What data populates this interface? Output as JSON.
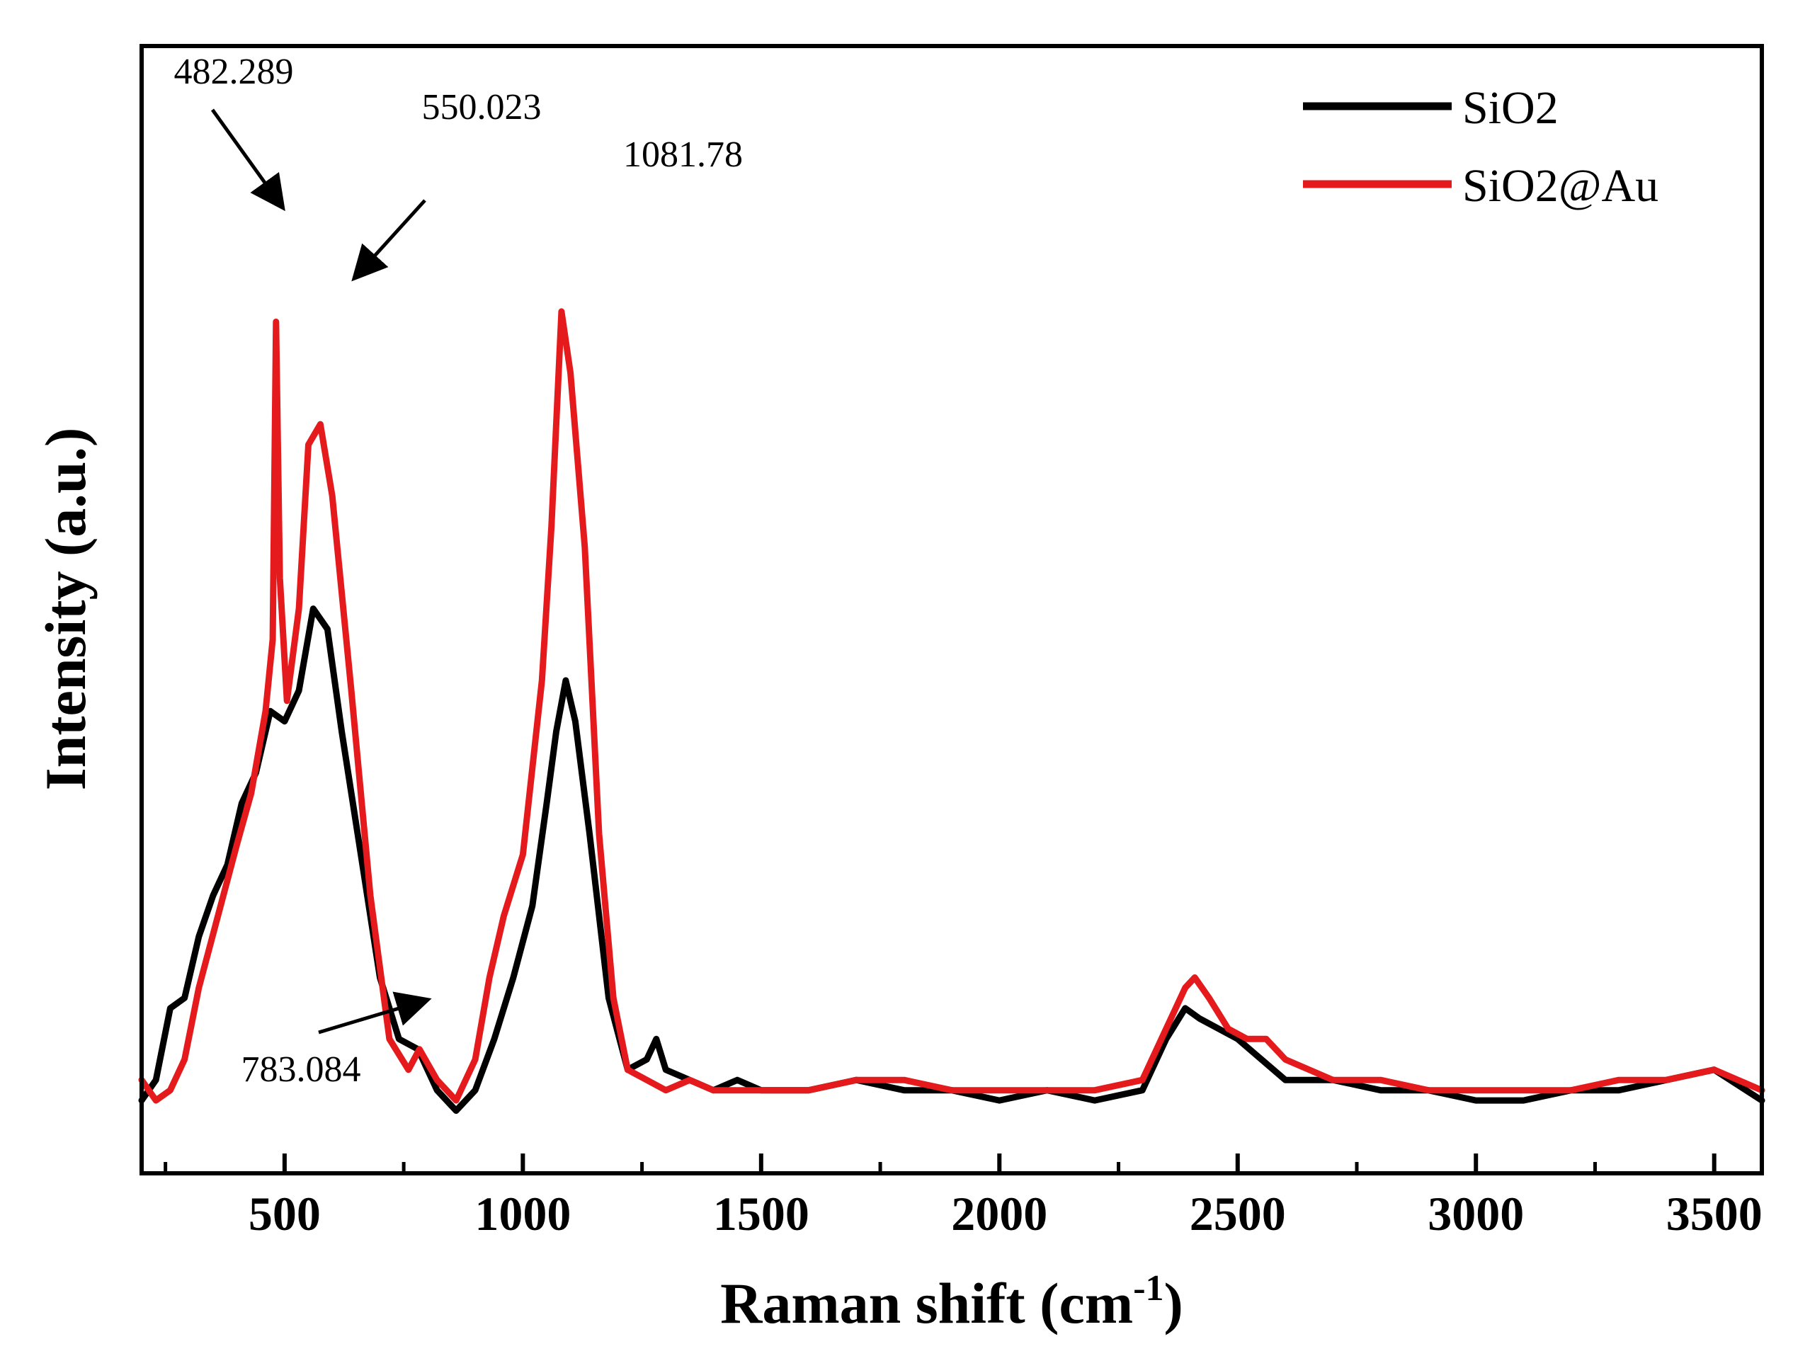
{
  "chart_data": {
    "type": "line",
    "xlabel": "Raman shift (cm",
    "xlabel_sup": "-1",
    "xlabel_close": ")",
    "ylabel": "Intensity (a.u.)",
    "xlim": [
      200,
      3600
    ],
    "ylim": [
      0,
      100
    ],
    "x_ticks": [
      500,
      1000,
      1500,
      2000,
      2500,
      3000,
      3500
    ],
    "x_minor_ticks": [
      250,
      750,
      1250,
      1750,
      2250,
      2750,
      3250
    ],
    "y_ticks_labeled": false,
    "legend": {
      "position": "top-right"
    },
    "series": [
      {
        "name": "SiO2",
        "color": "#000000",
        "points": [
          [
            200,
            4
          ],
          [
            230,
            6
          ],
          [
            260,
            13
          ],
          [
            290,
            14
          ],
          [
            320,
            20
          ],
          [
            350,
            24
          ],
          [
            380,
            27
          ],
          [
            410,
            33
          ],
          [
            440,
            36
          ],
          [
            470,
            42
          ],
          [
            500,
            41
          ],
          [
            530,
            44
          ],
          [
            560,
            52
          ],
          [
            590,
            50
          ],
          [
            620,
            40
          ],
          [
            660,
            28
          ],
          [
            700,
            16
          ],
          [
            740,
            10
          ],
          [
            780,
            9
          ],
          [
            820,
            5
          ],
          [
            860,
            3
          ],
          [
            900,
            5
          ],
          [
            940,
            10
          ],
          [
            980,
            16
          ],
          [
            1020,
            23
          ],
          [
            1050,
            33
          ],
          [
            1070,
            40
          ],
          [
            1090,
            45
          ],
          [
            1110,
            41
          ],
          [
            1140,
            30
          ],
          [
            1180,
            14
          ],
          [
            1220,
            7
          ],
          [
            1260,
            8
          ],
          [
            1280,
            10
          ],
          [
            1300,
            7
          ],
          [
            1350,
            6
          ],
          [
            1400,
            5
          ],
          [
            1450,
            6
          ],
          [
            1500,
            5
          ],
          [
            1600,
            5
          ],
          [
            1700,
            6
          ],
          [
            1800,
            5
          ],
          [
            1900,
            5
          ],
          [
            2000,
            4
          ],
          [
            2100,
            5
          ],
          [
            2200,
            4
          ],
          [
            2300,
            5
          ],
          [
            2350,
            10
          ],
          [
            2390,
            13
          ],
          [
            2420,
            12
          ],
          [
            2460,
            11
          ],
          [
            2500,
            10
          ],
          [
            2550,
            8
          ],
          [
            2600,
            6
          ],
          [
            2700,
            6
          ],
          [
            2800,
            5
          ],
          [
            2900,
            5
          ],
          [
            3000,
            4
          ],
          [
            3100,
            4
          ],
          [
            3200,
            5
          ],
          [
            3300,
            5
          ],
          [
            3400,
            6
          ],
          [
            3500,
            7
          ],
          [
            3600,
            4
          ]
        ]
      },
      {
        "name": "SiO2@Au",
        "color": "#e41a1c",
        "points": [
          [
            200,
            6
          ],
          [
            230,
            4
          ],
          [
            260,
            5
          ],
          [
            290,
            8
          ],
          [
            320,
            15
          ],
          [
            360,
            22
          ],
          [
            400,
            29
          ],
          [
            430,
            34
          ],
          [
            460,
            42
          ],
          [
            475,
            49
          ],
          [
            482,
            80
          ],
          [
            490,
            55
          ],
          [
            505,
            43
          ],
          [
            530,
            52
          ],
          [
            550,
            68
          ],
          [
            575,
            70
          ],
          [
            600,
            63
          ],
          [
            640,
            44
          ],
          [
            680,
            24
          ],
          [
            720,
            10
          ],
          [
            760,
            7
          ],
          [
            783,
            9
          ],
          [
            820,
            6
          ],
          [
            860,
            4
          ],
          [
            900,
            8
          ],
          [
            930,
            16
          ],
          [
            960,
            22
          ],
          [
            1000,
            28
          ],
          [
            1040,
            45
          ],
          [
            1060,
            60
          ],
          [
            1081,
            81
          ],
          [
            1100,
            75
          ],
          [
            1130,
            58
          ],
          [
            1160,
            30
          ],
          [
            1190,
            14
          ],
          [
            1220,
            7
          ],
          [
            1260,
            6
          ],
          [
            1300,
            5
          ],
          [
            1350,
            6
          ],
          [
            1400,
            5
          ],
          [
            1500,
            5
          ],
          [
            1600,
            5
          ],
          [
            1700,
            6
          ],
          [
            1800,
            6
          ],
          [
            1900,
            5
          ],
          [
            2000,
            5
          ],
          [
            2100,
            5
          ],
          [
            2200,
            5
          ],
          [
            2300,
            6
          ],
          [
            2350,
            11
          ],
          [
            2390,
            15
          ],
          [
            2410,
            16
          ],
          [
            2440,
            14
          ],
          [
            2480,
            11
          ],
          [
            2520,
            10
          ],
          [
            2560,
            10
          ],
          [
            2600,
            8
          ],
          [
            2700,
            6
          ],
          [
            2800,
            6
          ],
          [
            2900,
            5
          ],
          [
            3000,
            5
          ],
          [
            3100,
            5
          ],
          [
            3200,
            5
          ],
          [
            3300,
            6
          ],
          [
            3400,
            6
          ],
          [
            3500,
            7
          ],
          [
            3550,
            6
          ],
          [
            3600,
            5
          ]
        ]
      }
    ],
    "annotations": [
      {
        "text": "482.289",
        "x": 482,
        "series": "SiO2@Au"
      },
      {
        "text": "550.023",
        "x": 550,
        "series": "SiO2@Au"
      },
      {
        "text": "1081.78",
        "x": 1081,
        "series": "SiO2@Au"
      },
      {
        "text": "783.084",
        "x": 783,
        "series": "SiO2@Au"
      }
    ]
  }
}
